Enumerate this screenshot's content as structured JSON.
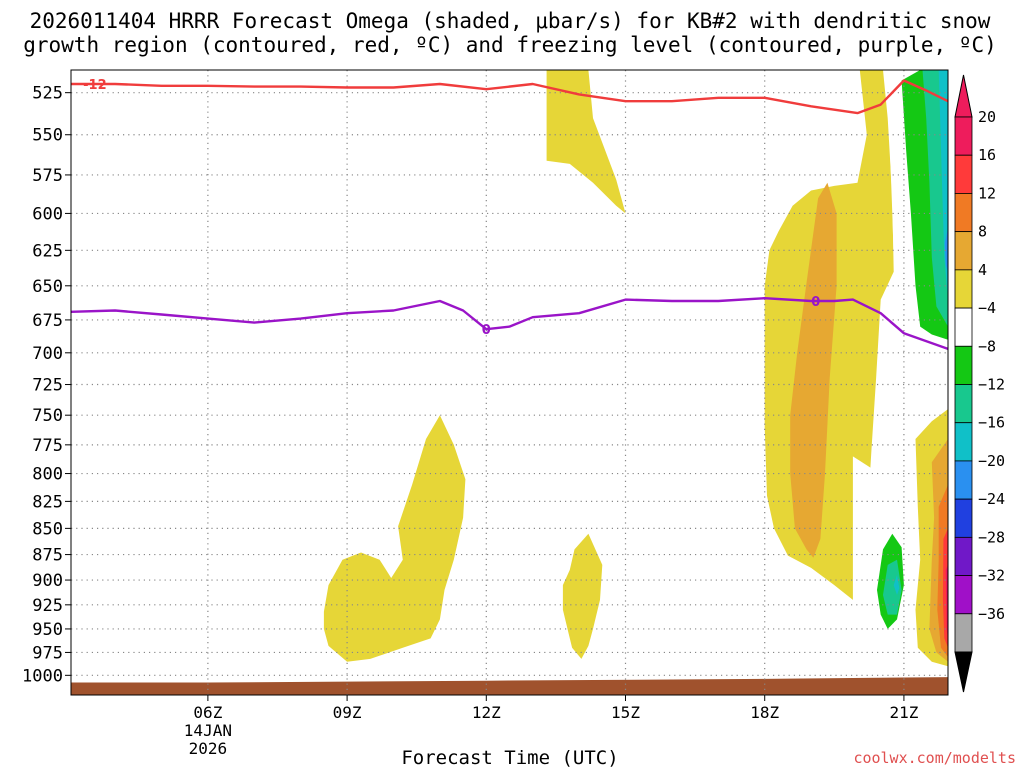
{
  "chart_data": {
    "type": "contour",
    "title_line1": "2026011404 HRRR Forecast Omega (shaded, μbar/s) for KB#2 with dendritic snow",
    "title_line2": "growth region (contoured, red, ºC) and freezing level (contoured, purple, ºC)",
    "xlabel": "Forecast Time (UTC)",
    "credit": "coolwx.com/modelts",
    "x_ticks": [
      {
        "hour": 6,
        "label": "06Z",
        "sub1": "14JAN",
        "sub2": "2026"
      },
      {
        "hour": 9,
        "label": "09Z"
      },
      {
        "hour": 12,
        "label": "12Z"
      },
      {
        "hour": 15,
        "label": "15Z"
      },
      {
        "hour": 18,
        "label": "18Z"
      },
      {
        "hour": 21,
        "label": "21Z"
      }
    ],
    "xlim": [
      3.05,
      21.95
    ],
    "y_ticks": [
      525,
      550,
      575,
      600,
      625,
      650,
      675,
      700,
      725,
      750,
      775,
      800,
      825,
      850,
      875,
      900,
      925,
      950,
      975,
      1000
    ],
    "ylim": [
      512,
      1022
    ],
    "y_scale": "log-pressure",
    "colorbar": {
      "levels": [
        -36,
        -32,
        -28,
        -24,
        -20,
        -16,
        -12,
        -8,
        -4,
        4,
        8,
        12,
        16,
        20
      ],
      "labels": [
        "20",
        "16",
        "12",
        "8",
        "4",
        "−4",
        "−8",
        "−12",
        "−16",
        "−20",
        "−24",
        "−28",
        "−32",
        "−36"
      ],
      "colors_top_to_bottom": [
        "#ee1c5c",
        "#ff3a3a",
        "#f07a24",
        "#e6a832",
        "#e6d637",
        "#ffffff",
        "#14c814",
        "#18c88e",
        "#10c0c8",
        "#2a90f0",
        "#2040e0",
        "#7018c8",
        "#a010c8",
        "#a8a8a8"
      ],
      "triangle_top": "#ee1c5c",
      "triangle_bottom": "#000000"
    },
    "colors": {
      "dgz_line": "#f03c3c",
      "freezing_line": "#9a14c8",
      "ground": "#a0522d",
      "grid": "#888888"
    },
    "dgz_line": {
      "label": "-12",
      "label_at": [
        3.35,
        520
      ],
      "points": [
        [
          3.05,
          520
        ],
        [
          4,
          520
        ],
        [
          5,
          521
        ],
        [
          6,
          521
        ],
        [
          7,
          521.5
        ],
        [
          8,
          521.5
        ],
        [
          9,
          522
        ],
        [
          10,
          522
        ],
        [
          11,
          520
        ],
        [
          12,
          523
        ],
        [
          13,
          520
        ],
        [
          14,
          526
        ],
        [
          15,
          530
        ],
        [
          16,
          530
        ],
        [
          17,
          528
        ],
        [
          18,
          528
        ],
        [
          19,
          533
        ],
        [
          20,
          537
        ],
        [
          20.5,
          532
        ],
        [
          21,
          518
        ],
        [
          21.5,
          524
        ],
        [
          21.95,
          530
        ]
      ]
    },
    "freezing_line": {
      "label": "0",
      "label_at": [
        [
          12,
          682
        ],
        [
          19.1,
          661
        ]
      ],
      "points": [
        [
          3.05,
          669
        ],
        [
          4,
          668
        ],
        [
          5,
          671
        ],
        [
          6,
          674
        ],
        [
          7,
          677
        ],
        [
          8,
          674
        ],
        [
          9,
          670
        ],
        [
          10,
          668
        ],
        [
          11,
          661
        ],
        [
          11.5,
          668
        ],
        [
          12,
          682
        ],
        [
          12.5,
          680
        ],
        [
          13,
          673
        ],
        [
          14,
          670
        ],
        [
          15,
          660
        ],
        [
          16,
          661
        ],
        [
          17,
          661
        ],
        [
          18,
          659
        ],
        [
          19,
          661
        ],
        [
          19.5,
          661
        ],
        [
          19.9,
          660
        ],
        [
          20.5,
          670
        ],
        [
          21,
          685
        ],
        [
          21.95,
          697
        ]
      ]
    },
    "omega_regions": [
      {
        "level": 4,
        "points": [
          [
            13.3,
            512
          ],
          [
            14.2,
            512
          ],
          [
            14.3,
            540
          ],
          [
            14.8,
            578
          ],
          [
            15,
            600
          ],
          [
            14.8,
            595
          ],
          [
            14.3,
            580
          ],
          [
            13.8,
            568
          ],
          [
            13.3,
            566
          ]
        ]
      },
      {
        "level": -4,
        "points": [
          [
            16.07,
            512
          ],
          [
            16.12,
            512
          ],
          [
            16.12,
            520
          ],
          [
            16.07,
            520
          ]
        ]
      },
      {
        "level": 4,
        "points": [
          [
            18.3,
            612
          ],
          [
            18.6,
            595
          ],
          [
            19,
            585
          ],
          [
            19.5,
            582
          ],
          [
            20,
            580
          ],
          [
            20.2,
            550
          ],
          [
            20.05,
            512
          ],
          [
            20.55,
            512
          ],
          [
            20.65,
            540
          ],
          [
            20.75,
            590
          ],
          [
            20.78,
            640
          ],
          [
            20.5,
            660
          ],
          [
            20.4,
            720
          ],
          [
            20.3,
            780
          ],
          [
            20.2,
            850
          ],
          [
            20.05,
            910
          ],
          [
            19.9,
            920
          ],
          [
            19.5,
            905
          ],
          [
            19,
            888
          ],
          [
            18.5,
            876
          ],
          [
            18.2,
            850
          ],
          [
            18.05,
            820
          ],
          [
            18,
            760
          ],
          [
            18,
            700
          ],
          [
            18,
            650
          ],
          [
            18.1,
            625
          ]
        ]
      },
      {
        "level": 8,
        "points": [
          [
            18.9,
            648
          ],
          [
            19.15,
            590
          ],
          [
            19.35,
            580
          ],
          [
            19.55,
            600
          ],
          [
            19.55,
            650
          ],
          [
            19.4,
            720
          ],
          [
            19.3,
            800
          ],
          [
            19.2,
            860
          ],
          [
            19.05,
            878
          ],
          [
            18.9,
            870
          ],
          [
            18.65,
            850
          ],
          [
            18.55,
            800
          ],
          [
            18.55,
            750
          ],
          [
            18.7,
            700
          ]
        ]
      },
      {
        "level": 4,
        "points": [
          [
            8.5,
            932
          ],
          [
            8.6,
            905
          ],
          [
            8.9,
            880
          ],
          [
            9.3,
            873
          ],
          [
            9.7,
            880
          ],
          [
            9.95,
            898
          ],
          [
            10.2,
            880
          ],
          [
            10.1,
            848
          ],
          [
            10.4,
            810
          ],
          [
            10.7,
            770
          ],
          [
            11,
            750
          ],
          [
            11.3,
            775
          ],
          [
            11.55,
            805
          ],
          [
            11.5,
            840
          ],
          [
            11.3,
            880
          ],
          [
            11.1,
            910
          ],
          [
            11,
            940
          ],
          [
            10.8,
            960
          ],
          [
            10.2,
            970
          ],
          [
            9.5,
            982
          ],
          [
            9,
            985
          ],
          [
            8.6,
            968
          ],
          [
            8.5,
            950
          ]
        ]
      },
      {
        "level": 4,
        "points": [
          [
            13.65,
            905
          ],
          [
            13.8,
            890
          ],
          [
            13.9,
            870
          ],
          [
            14.2,
            855
          ],
          [
            14.5,
            885
          ],
          [
            14.45,
            920
          ],
          [
            14.3,
            950
          ],
          [
            14.2,
            968
          ],
          [
            14.05,
            982
          ],
          [
            13.85,
            970
          ],
          [
            13.75,
            950
          ],
          [
            13.65,
            930
          ]
        ]
      },
      {
        "level": -4,
        "points": [
          [
            8.9,
            720
          ],
          [
            9.05,
            680
          ],
          [
            9.2,
            710
          ],
          [
            9.28,
            750
          ],
          [
            9.15,
            790
          ],
          [
            8.96,
            786
          ],
          [
            8.88,
            760
          ]
        ]
      },
      {
        "level": -4,
        "points": [
          [
            15.8,
            925
          ],
          [
            15.9,
            905
          ],
          [
            16.06,
            915
          ],
          [
            16.12,
            940
          ],
          [
            16.05,
            968
          ],
          [
            15.88,
            962
          ],
          [
            15.8,
            945
          ]
        ]
      },
      {
        "level": -4,
        "points": [
          [
            19.9,
            785
          ],
          [
            20.4,
            798
          ],
          [
            20.8,
            808
          ],
          [
            21.05,
            815
          ],
          [
            21.1,
            875
          ],
          [
            21,
            940
          ],
          [
            21.05,
            985
          ],
          [
            20.8,
            983
          ],
          [
            20.5,
            978
          ],
          [
            20.1,
            972
          ],
          [
            19.9,
            960
          ],
          [
            19.9,
            900
          ],
          [
            19.9,
            840
          ]
        ]
      },
      {
        "level": -8,
        "points": [
          [
            20.42,
            910
          ],
          [
            20.55,
            870
          ],
          [
            20.75,
            855
          ],
          [
            20.95,
            868
          ],
          [
            21,
            905
          ],
          [
            20.85,
            940
          ],
          [
            20.65,
            950
          ],
          [
            20.5,
            935
          ]
        ]
      },
      {
        "level": -12,
        "points": [
          [
            20.55,
            915
          ],
          [
            20.65,
            885
          ],
          [
            20.85,
            880
          ],
          [
            20.95,
            910
          ],
          [
            20.85,
            935
          ],
          [
            20.65,
            935
          ]
        ]
      },
      {
        "level": -16,
        "points": [
          [
            20.78,
            905
          ],
          [
            20.85,
            895
          ],
          [
            20.9,
            908
          ],
          [
            20.85,
            915
          ]
        ]
      },
      {
        "level": -4,
        "points": [
          [
            20.7,
            518
          ],
          [
            21.05,
            512
          ],
          [
            21.95,
            512
          ],
          [
            21.95,
            697
          ],
          [
            21.5,
            695
          ],
          [
            21.05,
            690
          ],
          [
            20.95,
            676
          ],
          [
            20.8,
            650
          ],
          [
            20.75,
            600
          ],
          [
            20.7,
            560
          ]
        ]
      },
      {
        "level": -8,
        "points": [
          [
            20.95,
            518
          ],
          [
            21.35,
            512
          ],
          [
            21.95,
            512
          ],
          [
            21.95,
            690
          ],
          [
            21.6,
            686
          ],
          [
            21.35,
            680
          ],
          [
            21.25,
            650
          ],
          [
            21.15,
            600
          ],
          [
            21.05,
            560
          ]
        ]
      },
      {
        "level": -12,
        "points": [
          [
            21.4,
            512
          ],
          [
            21.95,
            512
          ],
          [
            21.95,
            680
          ],
          [
            21.7,
            665
          ],
          [
            21.6,
            630
          ],
          [
            21.55,
            580
          ],
          [
            21.48,
            540
          ]
        ]
      },
      {
        "level": -16,
        "points": [
          [
            21.75,
            512
          ],
          [
            21.95,
            512
          ],
          [
            21.95,
            660
          ],
          [
            21.87,
            630
          ],
          [
            21.82,
            580
          ],
          [
            21.78,
            540
          ]
        ]
      },
      {
        "level": -20,
        "points": [
          [
            21.88,
            620
          ],
          [
            21.95,
            610
          ],
          [
            21.95,
            640
          ],
          [
            21.9,
            635
          ]
        ]
      },
      {
        "level": 4,
        "points": [
          [
            21.25,
            770
          ],
          [
            21.6,
            755
          ],
          [
            21.95,
            745
          ],
          [
            21.95,
            990
          ],
          [
            21.6,
            985
          ],
          [
            21.3,
            970
          ],
          [
            21.25,
            930
          ],
          [
            21.35,
            880
          ],
          [
            21.3,
            830
          ]
        ]
      },
      {
        "level": 8,
        "points": [
          [
            21.6,
            790
          ],
          [
            21.95,
            770
          ],
          [
            21.95,
            985
          ],
          [
            21.7,
            975
          ],
          [
            21.55,
            950
          ],
          [
            21.6,
            880
          ],
          [
            21.65,
            840
          ]
        ]
      },
      {
        "level": 12,
        "points": [
          [
            21.75,
            830
          ],
          [
            21.95,
            810
          ],
          [
            21.95,
            980
          ],
          [
            21.8,
            970
          ],
          [
            21.72,
            930
          ],
          [
            21.75,
            880
          ]
        ]
      },
      {
        "level": 16,
        "points": [
          [
            21.85,
            860
          ],
          [
            21.95,
            850
          ],
          [
            21.95,
            970
          ],
          [
            21.87,
            960
          ],
          [
            21.84,
            920
          ]
        ]
      },
      {
        "level": 20,
        "points": [
          [
            21.9,
            890
          ],
          [
            21.95,
            885
          ],
          [
            21.95,
            960
          ],
          [
            21.92,
            950
          ]
        ]
      }
    ],
    "ground_polygon": [
      [
        3.05,
        1022
      ],
      [
        3.05,
        1008
      ],
      [
        6,
        1008
      ],
      [
        12,
        1006
      ],
      [
        18,
        1004
      ],
      [
        21.95,
        1002
      ],
      [
        21.95,
        1022
      ]
    ]
  }
}
